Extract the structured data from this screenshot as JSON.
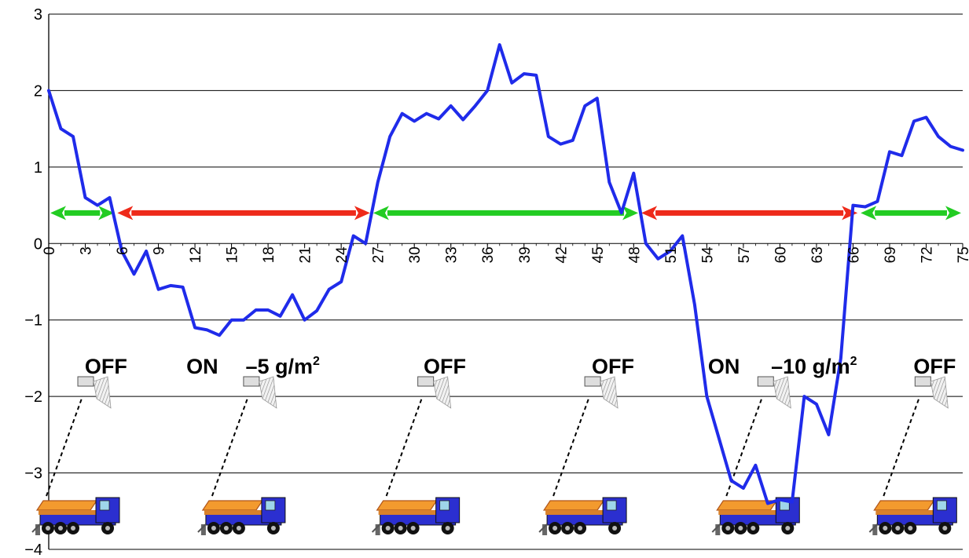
{
  "chart_data": {
    "type": "line",
    "xlim": [
      0,
      75
    ],
    "ylim": [
      -4,
      3
    ],
    "yticks": [
      3,
      2,
      1,
      0,
      -1,
      -2,
      -3,
      -4
    ],
    "ytick_labels": [
      "3",
      "2",
      "1",
      "0",
      "−1",
      "−2",
      "−3",
      "−4"
    ],
    "xtick_labels": [
      "0",
      "3",
      "6",
      "9",
      "12",
      "15",
      "18",
      "21",
      "24",
      "27",
      "30",
      "33",
      "36",
      "39",
      "42",
      "45",
      "48",
      "51",
      "54",
      "57",
      "60",
      "63",
      "66",
      "69",
      "72",
      "75"
    ],
    "grid": "horizontal",
    "colors": {
      "line": "#1f2bea",
      "on_arrow": "#ee2a1a",
      "off_arrow": "#22cc22",
      "grid": "#000000",
      "truck_body": "#2b2fd0",
      "truck_hopper": "#f39a2e"
    },
    "series": [
      {
        "x": [
          0,
          1,
          2,
          3,
          4,
          5,
          6,
          7,
          8,
          9,
          10,
          11,
          12,
          13,
          14,
          15,
          16,
          17,
          18,
          19,
          20,
          21,
          22,
          23,
          24,
          25,
          26,
          27,
          28,
          29,
          30,
          31,
          32,
          33,
          34,
          35,
          36,
          37,
          38,
          39,
          40,
          41,
          42,
          43,
          44,
          45,
          46,
          47,
          48,
          49,
          50,
          51,
          52,
          53,
          54,
          55,
          56,
          57,
          58,
          59,
          60,
          61,
          62,
          63,
          64,
          65,
          66,
          67,
          68,
          69,
          70,
          71,
          72,
          73,
          74,
          75
        ],
        "values": [
          2.0,
          1.5,
          1.4,
          0.6,
          0.5,
          0.6,
          -0.1,
          -0.4,
          -0.1,
          -0.6,
          -0.55,
          -0.57,
          -1.1,
          -1.13,
          -1.2,
          -1.0,
          -1.0,
          -0.87,
          -0.87,
          -0.95,
          -0.67,
          -1.0,
          -0.88,
          -0.6,
          -0.5,
          0.1,
          0.0,
          0.8,
          1.4,
          1.7,
          1.6,
          1.7,
          1.63,
          1.8,
          1.62,
          1.8,
          2.0,
          2.6,
          2.1,
          2.22,
          2.2,
          1.4,
          1.3,
          1.35,
          1.8,
          1.9,
          0.8,
          0.4,
          0.92,
          0.0,
          -0.2,
          -0.1,
          0.1,
          -0.8,
          -2.0,
          -2.55,
          -3.1,
          -3.2,
          -2.9,
          -3.4,
          -3.35,
          -3.38,
          -2.0,
          -2.1,
          -2.5,
          -1.5,
          0.5,
          0.48,
          0.55,
          1.2,
          1.15,
          1.6,
          1.65,
          1.4,
          1.27,
          1.22
        ]
      }
    ],
    "segments": [
      {
        "state": "OFF",
        "from": 0,
        "to": 5.5,
        "y": 0.4
      },
      {
        "state": "ON",
        "from": 5.5,
        "to": 26.5,
        "y": 0.4
      },
      {
        "state": "OFF",
        "from": 26.5,
        "to": 48.5,
        "y": 0.4
      },
      {
        "state": "ON",
        "from": 48.5,
        "to": 66.5,
        "y": 0.4
      },
      {
        "state": "OFF",
        "from": 66.5,
        "to": 75,
        "y": 0.4
      }
    ],
    "annotations": [
      {
        "text": "OFF",
        "x": 4.7
      },
      {
        "text": "ON",
        "x": 12.6
      },
      {
        "text": "–5 g/m",
        "sup": "2",
        "x": 19.2
      },
      {
        "text": "OFF",
        "x": 32.5
      },
      {
        "text": "OFF",
        "x": 46.3
      },
      {
        "text": "ON",
        "x": 55.4
      },
      {
        "text": "–10 g/m",
        "sup": "2",
        "x": 62.8
      },
      {
        "text": "OFF",
        "x": 72.7
      }
    ],
    "trucks": [
      2.0,
      15.6,
      29.9,
      43.6,
      57.8,
      70.7
    ]
  }
}
